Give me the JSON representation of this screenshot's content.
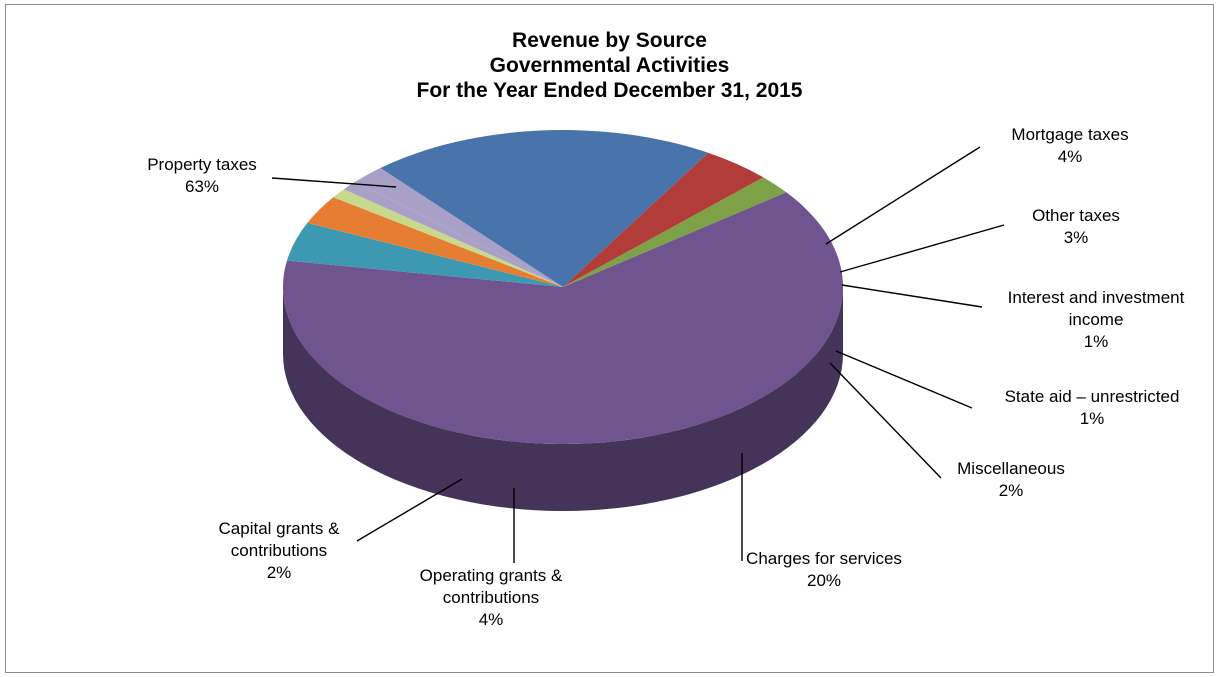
{
  "chart_data": {
    "type": "pie",
    "title_lines": [
      "Revenue by Source",
      "Governmental Activities",
      "For the Year Ended December 31, 2015"
    ],
    "unit": "%",
    "slices": [
      {
        "name": "Property taxes",
        "value": 63,
        "color": "#6f5490",
        "label_lines": [
          "Property taxes",
          "63%"
        ]
      },
      {
        "name": "Mortgage taxes",
        "value": 4,
        "color": "#3d98b1",
        "label_lines": [
          "Mortgage taxes",
          "4%"
        ]
      },
      {
        "name": "Other taxes",
        "value": 3,
        "color": "#e57e32",
        "label_lines": [
          "Other taxes",
          "3%"
        ]
      },
      {
        "name": "Interest and investment income",
        "value": 1,
        "color": "#c8d98e",
        "label_lines": [
          "Interest and investment",
          "income",
          "1%"
        ]
      },
      {
        "name": "State aid – unrestricted",
        "value": 1,
        "color": "#a9a0c8",
        "label_lines": [
          "State aid – unrestricted",
          "1%"
        ]
      },
      {
        "name": "Miscellaneous",
        "value": 2,
        "color": "#a9a0c8",
        "label_lines": [
          "Miscellaneous",
          "2%"
        ]
      },
      {
        "name": "Charges for services",
        "value": 20,
        "color": "#4873ab",
        "label_lines": [
          "Charges for services",
          "20%"
        ]
      },
      {
        "name": "Operating grants & contributions",
        "value": 4,
        "color": "#b23c3a",
        "label_lines": [
          "Operating grants &",
          "contributions",
          "4%"
        ]
      },
      {
        "name": "Capital grants & contributions",
        "value": 2,
        "color": "#7ea046",
        "label_lines": [
          "Capital grants &",
          "contributions",
          "2%"
        ]
      }
    ]
  }
}
